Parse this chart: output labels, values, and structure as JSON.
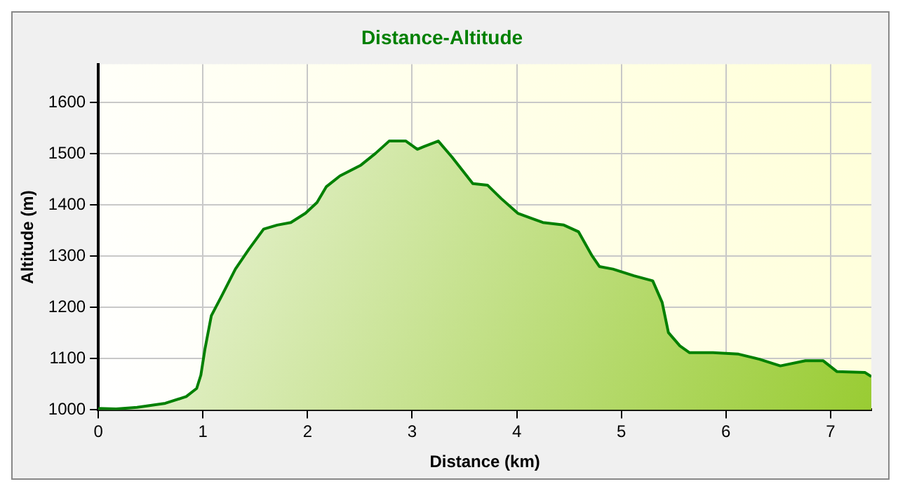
{
  "chart_data": {
    "type": "area",
    "title": "Distance-Altitude",
    "xlabel": "Distance (km)",
    "ylabel": "Altitude (m)",
    "x": [
      0,
      0.17,
      0.37,
      0.64,
      0.84,
      0.94,
      0.98,
      1.02,
      1.08,
      1.18,
      1.31,
      1.44,
      1.58,
      1.71,
      1.84,
      1.98,
      2.09,
      2.18,
      2.31,
      2.51,
      2.65,
      2.78,
      2.94,
      3.05,
      3.11,
      3.25,
      3.38,
      3.58,
      3.72,
      3.85,
      4.01,
      4.25,
      4.45,
      4.59,
      4.72,
      4.79,
      4.92,
      5.12,
      5.3,
      5.39,
      5.45,
      5.56,
      5.65,
      5.86,
      6.12,
      6.32,
      6.52,
      6.76,
      6.93,
      7.06,
      7.33,
      7.39
    ],
    "series": [
      {
        "color": "#008000",
        "values": [
          1003,
          1002,
          1005,
          1013,
          1026,
          1042,
          1068,
          1120,
          1184,
          1223,
          1275,
          1314,
          1353,
          1361,
          1366,
          1384,
          1405,
          1436,
          1457,
          1478,
          1501,
          1525,
          1525,
          1509,
          1514,
          1525,
          1494,
          1442,
          1439,
          1413,
          1384,
          1366,
          1361,
          1348,
          1301,
          1280,
          1275,
          1262,
          1252,
          1210,
          1151,
          1125,
          1112,
          1112,
          1109,
          1099,
          1086,
          1096,
          1096,
          1075,
          1073,
          1065
        ]
      }
    ],
    "xlim": [
      0,
      7.39
    ],
    "ylim": [
      1000,
      1675
    ],
    "xticks": [
      0,
      1,
      2,
      3,
      4,
      5,
      6,
      7
    ],
    "yticks": [
      1000,
      1100,
      1200,
      1300,
      1400,
      1500,
      1600
    ],
    "grid": true,
    "legend": false
  }
}
